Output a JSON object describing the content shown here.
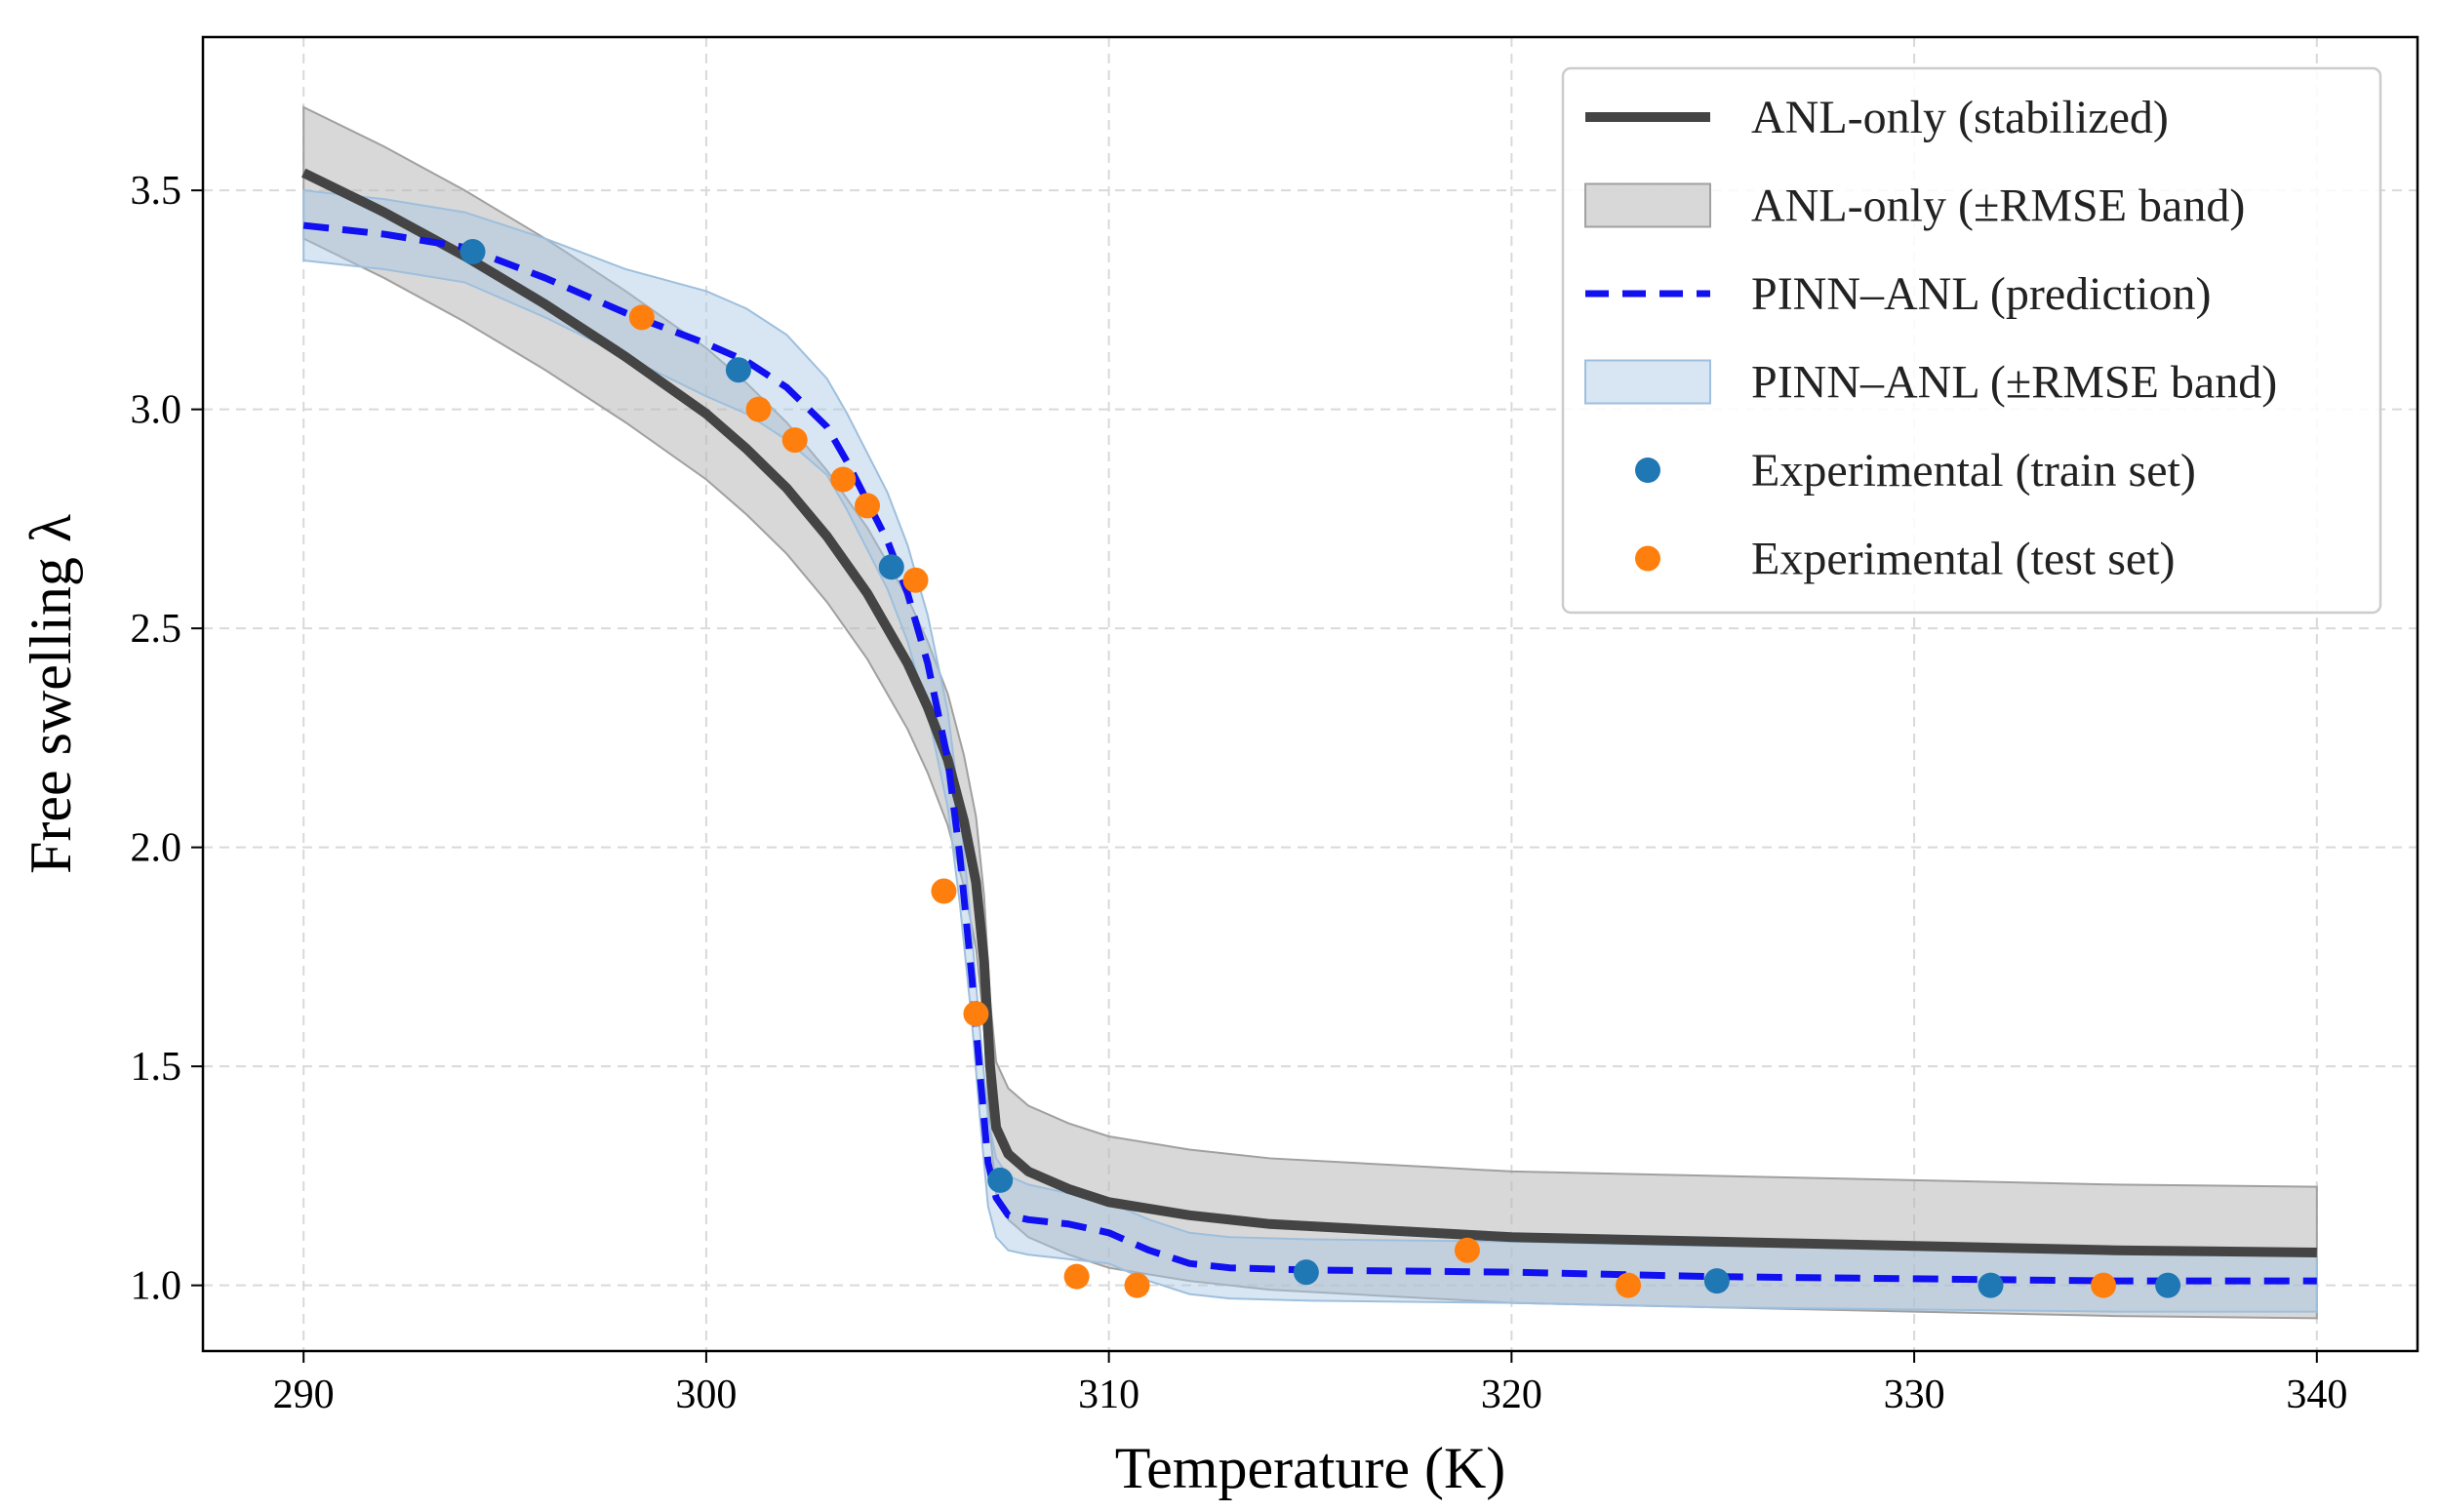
{
  "chart_data": {
    "type": "line",
    "title": "",
    "xlabel": "Temperature (K)",
    "ylabel": "Free swelling λ",
    "xlim": [
      287.5,
      342.5
    ],
    "ylim": [
      0.85,
      3.85
    ],
    "xticks": [
      290,
      300,
      310,
      320,
      330,
      340
    ],
    "yticks": [
      1.0,
      1.5,
      2.0,
      2.5,
      3.0,
      3.5
    ],
    "xtick_labels": [
      "290",
      "300",
      "310",
      "320",
      "330",
      "340"
    ],
    "ytick_labels": [
      "1.0",
      "1.5",
      "2.0",
      "2.5",
      "3.0",
      "3.5"
    ],
    "grid": true,
    "legend_position": "top-right",
    "colors": {
      "anl": "#444444",
      "anl_band": "#b8b8b8",
      "pinn": "#1010f0",
      "pinn_band": "#a9c8e4",
      "train": "#1f77b4",
      "test": "#ff7f0e"
    },
    "series": [
      {
        "name": "ANL-only (stabilized)",
        "kind": "line",
        "x": [
          290,
          292,
          294,
          296,
          298,
          300,
          301,
          302,
          303,
          304,
          305,
          305.5,
          306,
          306.4,
          306.7,
          306.9,
          307.05,
          307.2,
          307.5,
          308,
          309,
          310,
          312,
          314,
          316,
          318,
          320,
          325,
          330,
          335,
          340
        ],
        "y": [
          3.54,
          3.45,
          3.35,
          3.24,
          3.12,
          2.99,
          2.91,
          2.82,
          2.71,
          2.58,
          2.42,
          2.32,
          2.2,
          2.06,
          1.92,
          1.74,
          1.5,
          1.36,
          1.3,
          1.26,
          1.22,
          1.19,
          1.16,
          1.14,
          1.13,
          1.12,
          1.11,
          1.1,
          1.09,
          1.08,
          1.075
        ]
      },
      {
        "name": "ANL-only (±RMSE band)",
        "kind": "band",
        "x": [
          290,
          292,
          294,
          296,
          298,
          300,
          301,
          302,
          303,
          304,
          305,
          305.5,
          306,
          306.4,
          306.7,
          306.9,
          307.05,
          307.2,
          307.5,
          308,
          309,
          310,
          312,
          314,
          316,
          318,
          320,
          325,
          330,
          335,
          340
        ],
        "y_upper": [
          3.69,
          3.6,
          3.5,
          3.39,
          3.27,
          3.14,
          3.06,
          2.97,
          2.86,
          2.73,
          2.57,
          2.47,
          2.35,
          2.21,
          2.07,
          1.89,
          1.65,
          1.51,
          1.45,
          1.41,
          1.37,
          1.34,
          1.31,
          1.29,
          1.28,
          1.27,
          1.26,
          1.25,
          1.24,
          1.23,
          1.225
        ],
        "y_lower": [
          3.39,
          3.3,
          3.2,
          3.09,
          2.97,
          2.84,
          2.76,
          2.67,
          2.56,
          2.43,
          2.27,
          2.17,
          2.05,
          1.91,
          1.77,
          1.59,
          1.35,
          1.21,
          1.15,
          1.11,
          1.07,
          1.04,
          1.01,
          0.99,
          0.98,
          0.97,
          0.96,
          0.95,
          0.94,
          0.93,
          0.925
        ]
      },
      {
        "name": "PINN–ANL (prediction)",
        "kind": "line",
        "x": [
          290,
          292,
          294,
          296,
          298,
          300,
          301,
          302,
          303,
          303.5,
          304,
          304.5,
          305,
          305.5,
          306,
          306.3,
          306.6,
          306.8,
          307,
          307.2,
          307.5,
          308,
          309,
          310,
          311,
          312,
          313,
          315,
          320,
          325,
          330,
          335,
          340
        ],
        "y": [
          3.42,
          3.4,
          3.37,
          3.3,
          3.22,
          3.15,
          3.11,
          3.05,
          2.96,
          2.88,
          2.79,
          2.7,
          2.58,
          2.42,
          2.2,
          1.98,
          1.7,
          1.48,
          1.28,
          1.2,
          1.16,
          1.15,
          1.14,
          1.12,
          1.08,
          1.05,
          1.04,
          1.035,
          1.03,
          1.02,
          1.015,
          1.01,
          1.01
        ]
      },
      {
        "name": "PINN–ANL (±RMSE band)",
        "kind": "band",
        "x": [
          290,
          292,
          294,
          296,
          298,
          300,
          301,
          302,
          303,
          303.5,
          304,
          304.5,
          305,
          305.5,
          306,
          306.3,
          306.6,
          306.8,
          307,
          307.2,
          307.5,
          308,
          309,
          310,
          311,
          312,
          313,
          315,
          320,
          325,
          330,
          335,
          340
        ],
        "y_upper": [
          3.5,
          3.48,
          3.45,
          3.39,
          3.32,
          3.27,
          3.23,
          3.17,
          3.07,
          2.99,
          2.9,
          2.81,
          2.69,
          2.53,
          2.31,
          2.09,
          1.8,
          1.58,
          1.38,
          1.29,
          1.25,
          1.23,
          1.21,
          1.19,
          1.15,
          1.12,
          1.11,
          1.105,
          1.1,
          1.09,
          1.085,
          1.08,
          1.08
        ],
        "y_lower": [
          3.34,
          3.32,
          3.29,
          3.21,
          3.12,
          3.03,
          2.99,
          2.93,
          2.85,
          2.77,
          2.68,
          2.59,
          2.47,
          2.31,
          2.09,
          1.87,
          1.6,
          1.38,
          1.18,
          1.11,
          1.08,
          1.07,
          1.06,
          1.05,
          1.01,
          0.98,
          0.97,
          0.965,
          0.96,
          0.95,
          0.945,
          0.94,
          0.94
        ]
      },
      {
        "name": "Experimental (train set)",
        "kind": "scatter",
        "x": [
          294.2,
          300.8,
          304.6,
          307.3,
          314.9,
          325.1,
          331.9,
          336.3
        ],
        "y": [
          3.36,
          3.09,
          2.64,
          1.24,
          1.03,
          1.01,
          1.0,
          1.0
        ]
      },
      {
        "name": "Experimental (test set)",
        "kind": "scatter",
        "x": [
          298.4,
          301.3,
          302.2,
          303.4,
          304.0,
          305.2,
          305.9,
          306.7,
          309.2,
          310.7,
          318.9,
          322.9,
          334.7
        ],
        "y": [
          3.21,
          3.0,
          2.93,
          2.84,
          2.78,
          2.61,
          1.9,
          1.62,
          1.02,
          1.0,
          1.08,
          1.0,
          1.0
        ]
      }
    ]
  }
}
